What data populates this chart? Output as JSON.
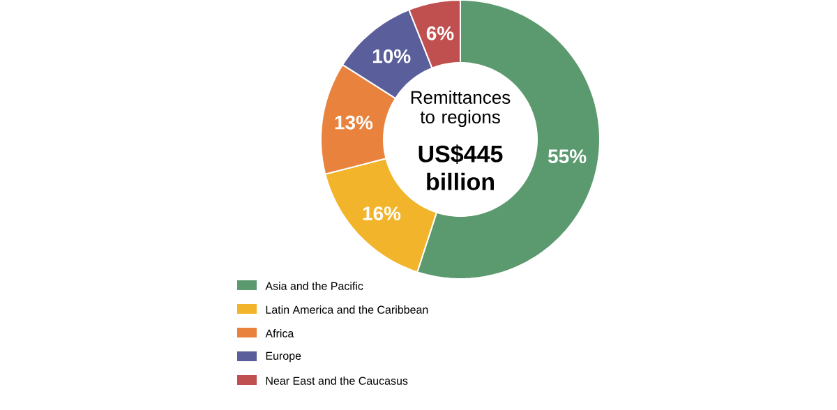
{
  "chart_data": {
    "type": "donut",
    "title": "Remittances to regions",
    "subtitle": "US$445 billion",
    "categories": [
      "Asia and the Pacific",
      "Latin America and the Caribbean",
      "Africa",
      "Europe",
      "Near East and the Caucasus"
    ],
    "values": [
      55,
      16,
      13,
      10,
      6
    ],
    "colors": [
      "#5b9a6f",
      "#f2b42a",
      "#e8823d",
      "#5a5e9b",
      "#c0504f"
    ],
    "value_labels": [
      "55%",
      "16%",
      "13%",
      "10%",
      "6%"
    ],
    "legend": "bottom left"
  }
}
